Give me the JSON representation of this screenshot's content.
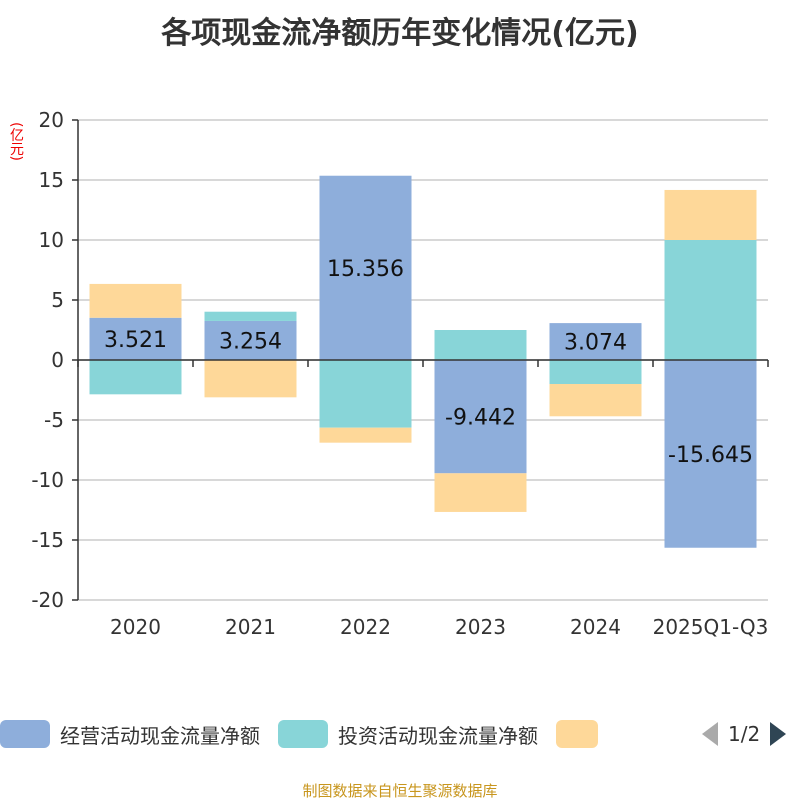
{
  "chart_data": {
    "type": "bar",
    "stacked": true,
    "title": "各项现金流净额历年变化情况(亿元)",
    "ylabel": "(亿元)",
    "ylim": [
      -20,
      20
    ],
    "yticks": [
      20,
      15,
      10,
      5,
      0,
      -5,
      -10,
      -15,
      -20
    ],
    "grid": true,
    "legend_position": "bottom",
    "categories": [
      "2020",
      "2021",
      "2022",
      "2023",
      "2024",
      "2025Q1-Q3"
    ],
    "series": [
      {
        "name": "经营活动现金流量净额",
        "color": "#8eaedb",
        "values": [
          3.521,
          3.254,
          15.356,
          -9.442,
          3.074,
          -15.645
        ],
        "labels": [
          "3.521",
          "3.254",
          "15.356",
          "-9.442",
          "3.074",
          "-15.645"
        ]
      },
      {
        "name": "投资活动现金流量净额",
        "color": "#88d5d8",
        "values": [
          -2.86,
          0.77,
          -5.64,
          2.5,
          -2.0,
          10.0
        ]
      },
      {
        "name": "",
        "color": "#fed899",
        "values": [
          2.82,
          -3.11,
          -1.25,
          -3.22,
          -2.69,
          4.17
        ]
      }
    ]
  },
  "legend_pager": {
    "text": "1/2"
  },
  "source": "制图数据来自恒生聚源数据库"
}
